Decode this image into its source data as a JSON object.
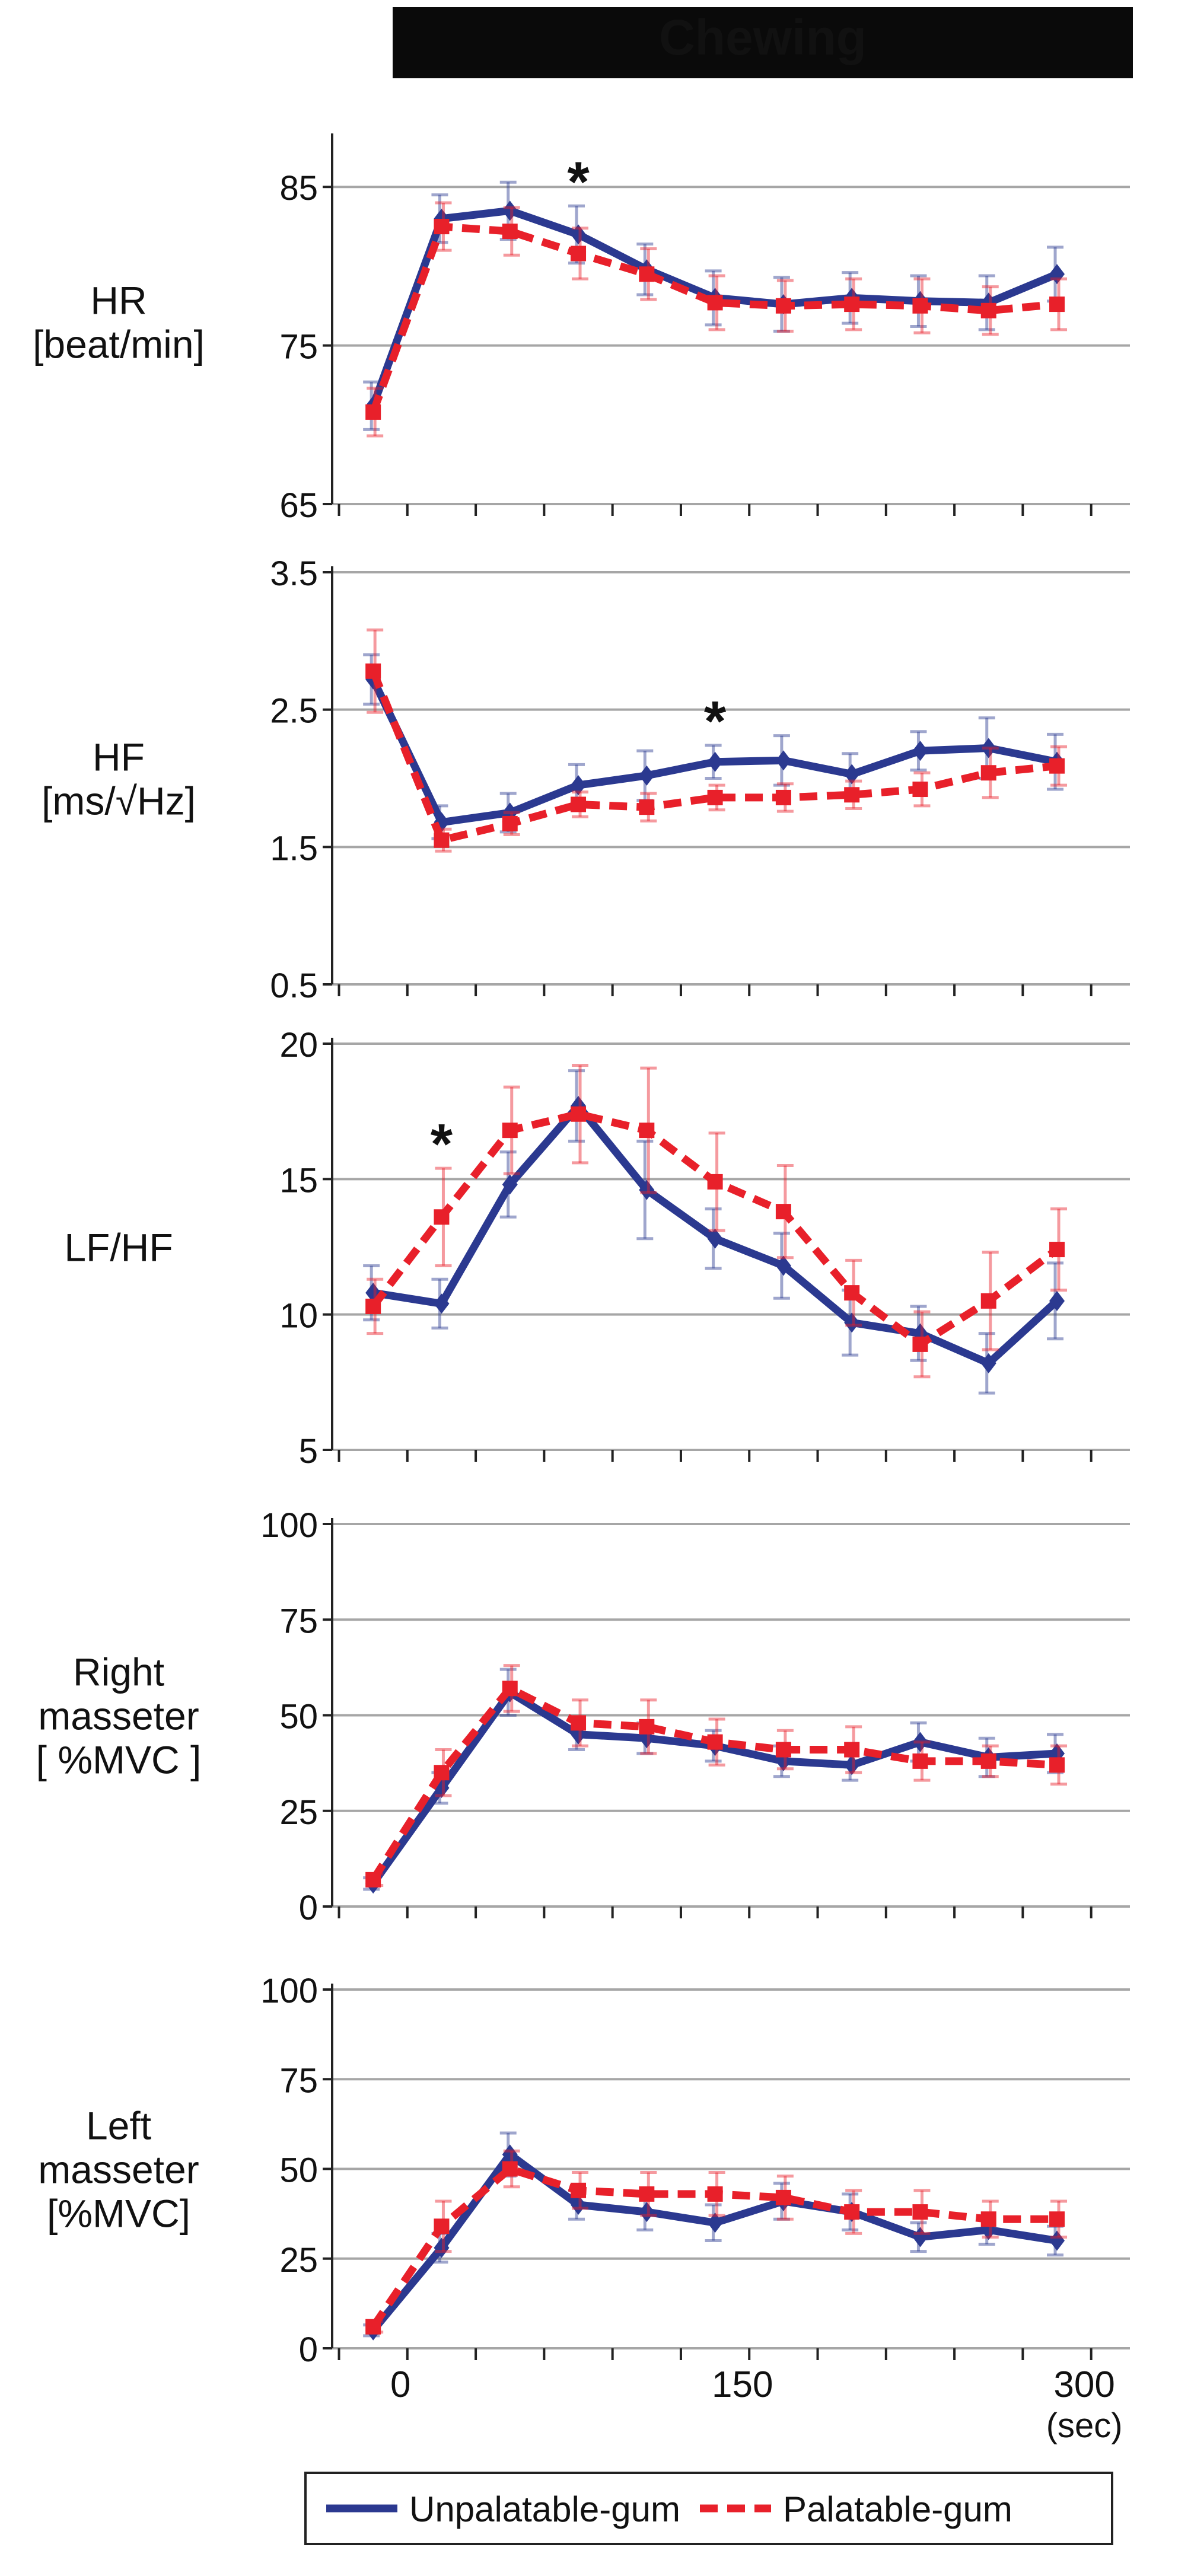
{
  "header": {
    "label": "Chewing",
    "bg": "#0a0a0a",
    "fg": "#ffffff"
  },
  "colors": {
    "unpalatable": "#2b3990",
    "palatable": "#e8202a",
    "grid": "#a6a6a6",
    "axis": "#222222"
  },
  "x_axis": {
    "ticks": [
      0,
      150,
      300
    ],
    "unit": "(sec)",
    "domain": [
      -30,
      320
    ]
  },
  "legend": {
    "placement": "bottom",
    "entries": [
      {
        "key": "unpalatable",
        "label": "Unpalatable-gum",
        "style": "solid"
      },
      {
        "key": "palatable",
        "label": "Palatable-gum",
        "style": "dashed"
      }
    ]
  },
  "chart_data": [
    {
      "type": "line",
      "ylabel": [
        "HR",
        "[beat/min]"
      ],
      "ylim": [
        65,
        88
      ],
      "yticks": [
        "65",
        "75",
        "85"
      ],
      "x": [
        -12,
        18,
        48,
        78,
        108,
        138,
        168,
        198,
        228,
        258,
        288
      ],
      "series": [
        {
          "name": "Unpalatable-gum",
          "key": "unpalatable",
          "values": [
            71.2,
            83.0,
            83.5,
            82.0,
            79.8,
            78.0,
            77.6,
            78.0,
            77.8,
            77.7,
            79.5
          ],
          "err": [
            1.5,
            1.5,
            1.8,
            1.8,
            1.6,
            1.7,
            1.7,
            1.6,
            1.6,
            1.7,
            1.7
          ]
        },
        {
          "name": "Palatable-gum",
          "key": "palatable",
          "values": [
            70.8,
            82.5,
            82.2,
            80.8,
            79.5,
            77.7,
            77.5,
            77.6,
            77.5,
            77.2,
            77.6
          ],
          "err": [
            1.5,
            1.5,
            1.5,
            1.6,
            1.6,
            1.7,
            1.6,
            1.6,
            1.7,
            1.5,
            1.6
          ]
        }
      ],
      "annotations": [
        {
          "text": "*",
          "x": 78
        }
      ]
    },
    {
      "type": "line",
      "ylabel": [
        "HF",
        "[ms/√Hz]"
      ],
      "ylim": [
        0.5,
        3.5
      ],
      "yticks": [
        "0.5",
        "1.5",
        "2.5",
        "3.5"
      ],
      "x": [
        -12,
        18,
        48,
        78,
        108,
        138,
        168,
        198,
        228,
        258,
        288
      ],
      "series": [
        {
          "name": "Unpalatable-gum",
          "key": "unpalatable",
          "values": [
            2.72,
            1.68,
            1.75,
            1.95,
            2.02,
            2.12,
            2.13,
            2.03,
            2.2,
            2.22,
            2.12
          ],
          "err": [
            0.18,
            0.12,
            0.14,
            0.15,
            0.18,
            0.12,
            0.18,
            0.15,
            0.14,
            0.22,
            0.2
          ]
        },
        {
          "name": "Palatable-gum",
          "key": "palatable",
          "values": [
            2.78,
            1.55,
            1.67,
            1.81,
            1.79,
            1.86,
            1.86,
            1.88,
            1.92,
            2.04,
            2.09
          ],
          "err": [
            0.3,
            0.08,
            0.08,
            0.09,
            0.1,
            0.09,
            0.1,
            0.1,
            0.12,
            0.18,
            0.14
          ]
        }
      ],
      "annotations": [
        {
          "text": "*",
          "x": 138
        }
      ]
    },
    {
      "type": "line",
      "ylabel": [
        "LF/HF"
      ],
      "ylim": [
        5,
        20
      ],
      "yticks": [
        "5",
        "10",
        "15",
        "20"
      ],
      "x": [
        -12,
        18,
        48,
        78,
        108,
        138,
        168,
        198,
        228,
        258,
        288
      ],
      "series": [
        {
          "name": "Unpalatable-gum",
          "key": "unpalatable",
          "values": [
            10.8,
            10.4,
            14.8,
            17.7,
            14.6,
            12.8,
            11.8,
            9.7,
            9.3,
            8.2,
            10.5
          ],
          "err": [
            1.0,
            0.9,
            1.2,
            1.3,
            1.8,
            1.1,
            1.2,
            1.2,
            1.0,
            1.1,
            1.4
          ]
        },
        {
          "name": "Palatable-gum",
          "key": "palatable",
          "values": [
            10.3,
            13.6,
            16.8,
            17.4,
            16.8,
            14.9,
            13.8,
            10.8,
            8.9,
            10.5,
            12.4
          ],
          "err": [
            1.0,
            1.8,
            1.6,
            1.8,
            2.3,
            1.8,
            1.7,
            1.2,
            1.2,
            1.8,
            1.5
          ]
        }
      ],
      "annotations": [
        {
          "text": "*",
          "x": 18
        }
      ]
    },
    {
      "type": "line",
      "ylabel": [
        "Right",
        "masseter",
        "[ %MVC ]"
      ],
      "ylim": [
        0,
        100
      ],
      "yticks": [
        "0",
        "25",
        "50",
        "75",
        "100"
      ],
      "x": [
        -12,
        18,
        48,
        78,
        108,
        138,
        168,
        198,
        228,
        258,
        288
      ],
      "series": [
        {
          "name": "Unpalatable-gum",
          "key": "unpalatable",
          "values": [
            6,
            31,
            56,
            45,
            44,
            42,
            38,
            37,
            43,
            39,
            40
          ],
          "err": [
            1.5,
            4,
            6,
            4,
            4,
            4,
            4,
            4,
            5,
            5,
            5
          ]
        },
        {
          "name": "Palatable-gum",
          "key": "palatable",
          "values": [
            7,
            35,
            57,
            48,
            47,
            43,
            41,
            41,
            38,
            38,
            37
          ],
          "err": [
            1.5,
            6,
            6,
            6,
            7,
            6,
            5,
            6,
            5,
            4,
            5
          ]
        }
      ],
      "annotations": []
    },
    {
      "type": "line",
      "ylabel": [
        "Left",
        "masseter",
        "[%MVC]"
      ],
      "ylim": [
        0,
        100
      ],
      "yticks": [
        "0",
        "25",
        "50",
        "75",
        "100"
      ],
      "x": [
        -12,
        18,
        48,
        78,
        108,
        138,
        168,
        198,
        228,
        258,
        288
      ],
      "series": [
        {
          "name": "Unpalatable-gum",
          "key": "unpalatable",
          "values": [
            5,
            28,
            54,
            40,
            38,
            35,
            41,
            38,
            31,
            33,
            30
          ],
          "err": [
            1.5,
            4,
            6,
            4,
            5,
            5,
            5,
            5,
            4,
            4,
            4
          ]
        },
        {
          "name": "Palatable-gum",
          "key": "palatable",
          "values": [
            6,
            34,
            50,
            44,
            43,
            43,
            42,
            38,
            38,
            36,
            36
          ],
          "err": [
            1.5,
            7,
            5,
            5,
            6,
            6,
            6,
            6,
            6,
            5,
            5
          ]
        }
      ],
      "annotations": []
    }
  ]
}
